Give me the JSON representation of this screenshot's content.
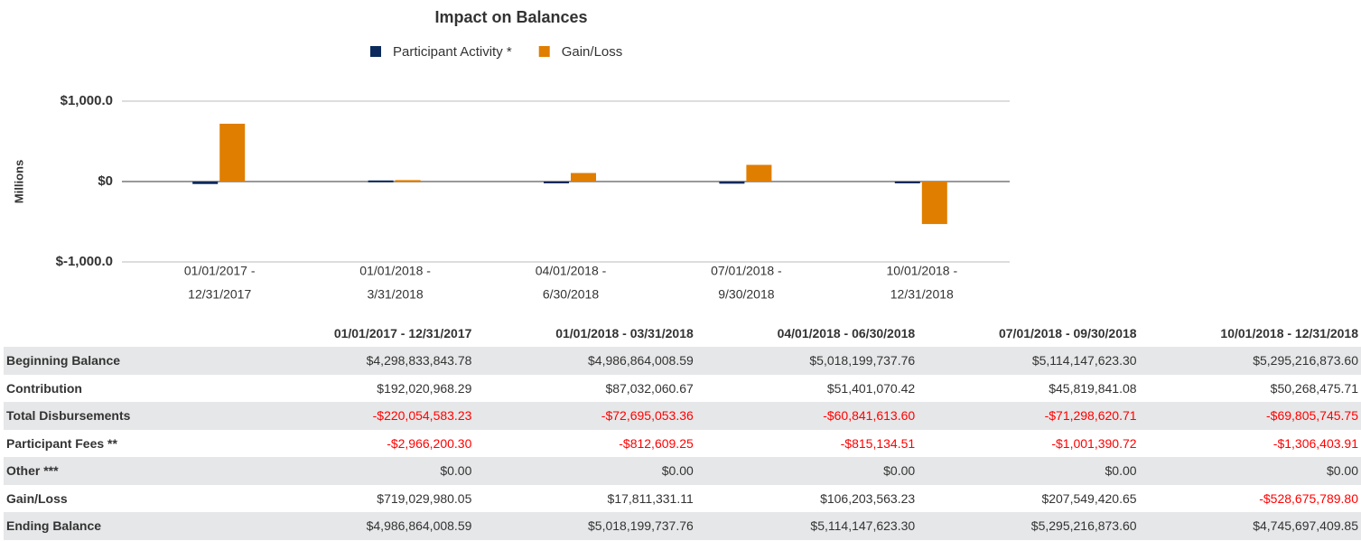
{
  "chart_data": {
    "type": "bar",
    "title": "Impact on Balances",
    "y_label": "Millions",
    "categories": [
      [
        "01/01/2017 -",
        "12/31/2017"
      ],
      [
        "01/01/2018 -",
        "3/31/2018"
      ],
      [
        "04/01/2018 -",
        "6/30/2018"
      ],
      [
        "07/01/2018 -",
        "9/30/2018"
      ],
      [
        "10/01/2018 -",
        "12/31/2018"
      ]
    ],
    "series": [
      {
        "name": "Participant Activity *",
        "color": "#0d2a5c",
        "values": [
          -31.0,
          13.5,
          -10.3,
          -26.5,
          -20.8
        ]
      },
      {
        "name": "Gain/Loss",
        "color": "#e07e00",
        "values": [
          719.0,
          17.8,
          106.2,
          207.5,
          -528.7
        ]
      }
    ],
    "ylim": [
      -1000,
      1000
    ],
    "yticks": [
      {
        "value": -1000,
        "label": "$-1,000.0"
      },
      {
        "value": 0,
        "label": "$0"
      },
      {
        "value": 1000,
        "label": "$1,000.0"
      }
    ],
    "grid": true
  },
  "table": {
    "negative_color": "#ff0000",
    "columns": [
      "01/01/2017 - 12/31/2017",
      "01/01/2018 - 03/31/2018",
      "04/01/2018 - 06/30/2018",
      "07/01/2018 - 09/30/2018",
      "10/01/2018 - 12/31/2018"
    ],
    "rows": [
      {
        "label": "Beginning Balance",
        "cells": [
          "$4,298,833,843.78",
          "$4,986,864,008.59",
          "$5,018,199,737.76",
          "$5,114,147,623.30",
          "$5,295,216,873.60"
        ]
      },
      {
        "label": "Contribution",
        "cells": [
          "$192,020,968.29",
          "$87,032,060.67",
          "$51,401,070.42",
          "$45,819,841.08",
          "$50,268,475.71"
        ]
      },
      {
        "label": "Total Disbursements",
        "cells": [
          "-$220,054,583.23",
          "-$72,695,053.36",
          "-$60,841,613.60",
          "-$71,298,620.71",
          "-$69,805,745.75"
        ]
      },
      {
        "label": "Participant Fees **",
        "cells": [
          "-$2,966,200.30",
          "-$812,609.25",
          "-$815,134.51",
          "-$1,001,390.72",
          "-$1,306,403.91"
        ]
      },
      {
        "label": "Other ***",
        "cells": [
          "$0.00",
          "$0.00",
          "$0.00",
          "$0.00",
          "$0.00"
        ]
      },
      {
        "label": "Gain/Loss",
        "cells": [
          "$719,029,980.05",
          "$17,811,331.11",
          "$106,203,563.23",
          "$207,549,420.65",
          "-$528,675,789.80"
        ]
      },
      {
        "label": "Ending Balance",
        "cells": [
          "$4,986,864,008.59",
          "$5,018,199,737.76",
          "$5,114,147,623.30",
          "$5,295,216,873.60",
          "$4,745,697,409.85"
        ]
      }
    ]
  }
}
